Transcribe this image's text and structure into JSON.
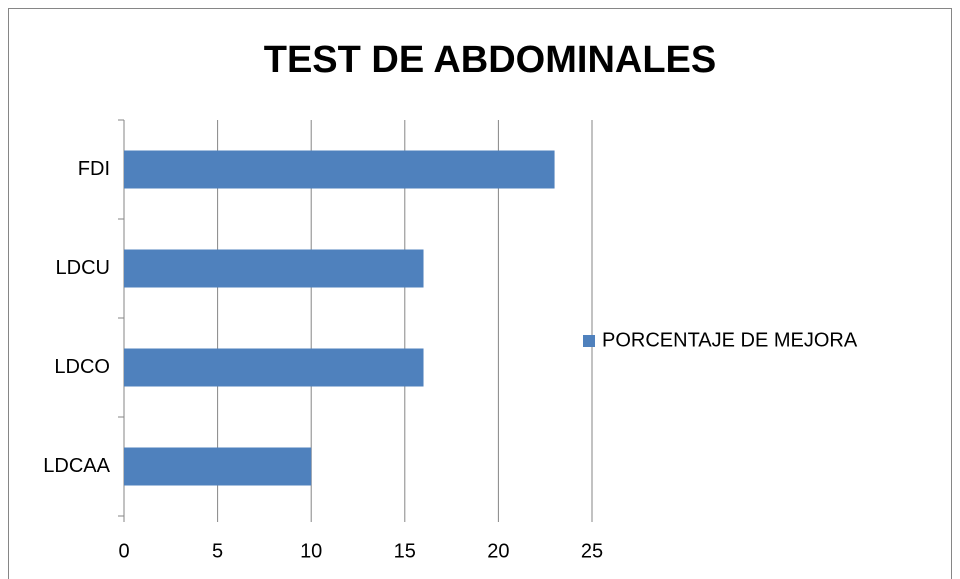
{
  "chart_data": {
    "type": "bar",
    "orientation": "horizontal",
    "title": "TEST DE ABDOMINALES",
    "categories": [
      "FDI",
      "LDCU",
      "LDCO",
      "LDCAA"
    ],
    "series": [
      {
        "name": "PORCENTAJE DE MEJORA",
        "color": "#4f81bd",
        "values": [
          23,
          16,
          16,
          10
        ]
      }
    ],
    "xlim": [
      0,
      25
    ],
    "xticks": [
      0,
      5,
      10,
      15,
      20,
      25
    ],
    "grid": true,
    "legend": "right"
  }
}
